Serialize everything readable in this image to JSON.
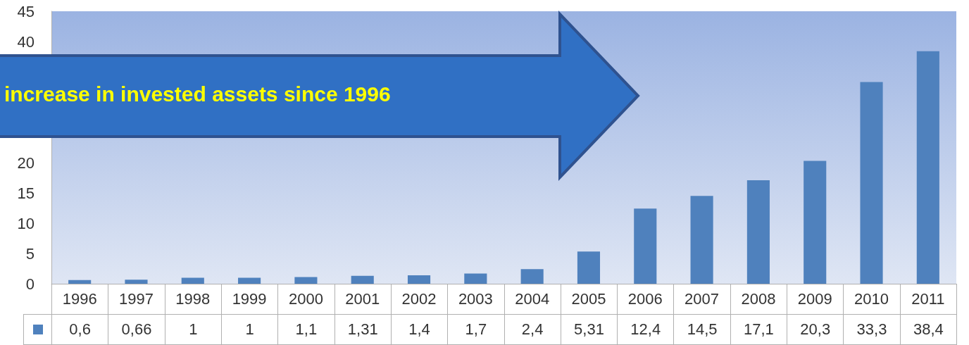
{
  "chart_data": {
    "type": "bar",
    "categories": [
      "1996",
      "1997",
      "1998",
      "1999",
      "2000",
      "2001",
      "2002",
      "2003",
      "2004",
      "2005",
      "2006",
      "2007",
      "2008",
      "2009",
      "2010",
      "2011"
    ],
    "values": [
      0.6,
      0.66,
      1,
      1,
      1.1,
      1.31,
      1.4,
      1.7,
      2.4,
      5.31,
      12.4,
      14.5,
      17.1,
      20.3,
      33.3,
      38.4
    ],
    "value_labels": [
      "0,6",
      "0,66",
      "1",
      "1",
      "1,1",
      "1,31",
      "1,4",
      "1,7",
      "2,4",
      "5,31",
      "12,4",
      "14,5",
      "17,1",
      "20,3",
      "33,3",
      "38,4"
    ],
    "color": "#4f81bd",
    "ylim": [
      0,
      45
    ],
    "yticks": [
      0,
      5,
      10,
      15,
      20,
      40,
      45
    ],
    "grid": false,
    "annotations": [
      "increase in invested assets since 1996"
    ]
  }
}
